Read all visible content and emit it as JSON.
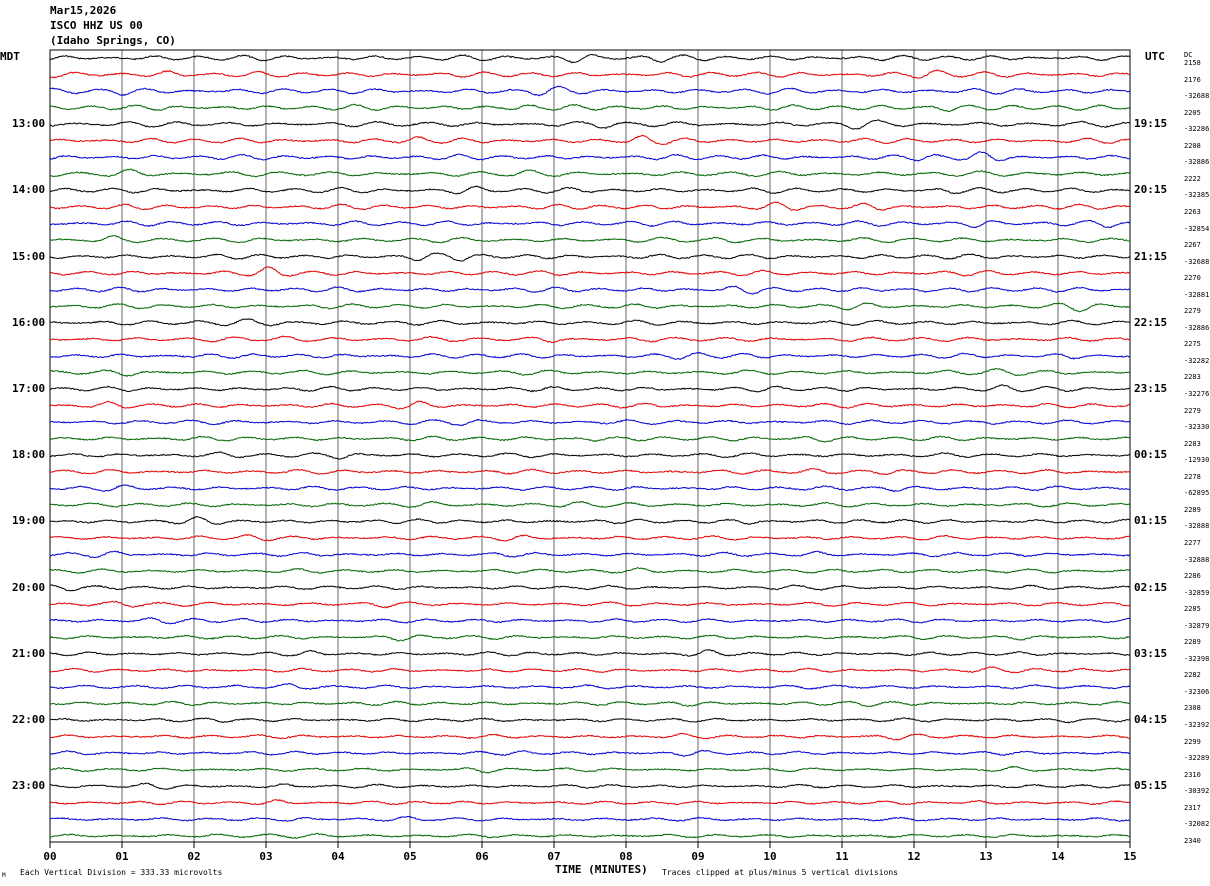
{
  "header": {
    "date": "Mar15,2026",
    "station": "ISCO HHZ US 00",
    "location": "(Idaho Springs, CO)"
  },
  "axis": {
    "left_label": "MDT",
    "right_label": "UTC",
    "dc_label": "DC"
  },
  "chart_data": {
    "type": "line",
    "title": "",
    "xlabel": "TIME (MINUTES)",
    "ylabel": "",
    "xlim": [
      0,
      15
    ],
    "x_ticks": [
      "00",
      "01",
      "02",
      "03",
      "04",
      "05",
      "06",
      "07",
      "08",
      "09",
      "10",
      "11",
      "12",
      "13",
      "14",
      "15"
    ],
    "rows_per_hour": 4,
    "row_minutes": 15,
    "trace_colors": [
      "#000000",
      "#e00000",
      "#0000d0",
      "#006400"
    ],
    "left_hour_labels": [
      "13:00",
      "14:00",
      "15:00",
      "16:00",
      "17:00",
      "18:00",
      "19:00",
      "20:00",
      "21:00",
      "22:00",
      "23:00"
    ],
    "right_hour_labels": [
      "19:15",
      "20:15",
      "21:15",
      "22:15",
      "23:15",
      "00:15",
      "01:15",
      "02:15",
      "03:15",
      "04:15",
      "05:15"
    ],
    "dc_offsets": [
      "2158",
      "2176",
      "-32688",
      "2205",
      "-32286",
      "2208",
      "-32886",
      "2222",
      "-32385",
      "2263",
      "-32854",
      "2267",
      "-32688",
      "2270",
      "-32881",
      "2279",
      "-32886",
      "2275",
      "-32282",
      "2283",
      "-32276",
      "2279",
      "-32330",
      "2283",
      "-12930",
      "2278",
      "-62895",
      "2289",
      "-32888",
      "2277",
      "-32888",
      "2286",
      "-32859",
      "2285",
      "-32879",
      "2289",
      "-32398",
      "2282",
      "-32306",
      "2308",
      "-32392",
      "2299",
      "-32289",
      "2310",
      "-30392",
      "2317",
      "-32082",
      "2340"
    ],
    "amplitude_units": "microvolts",
    "clip_divisions": 5
  },
  "footer": {
    "scale_note": "Each Vertical Division =  333.33 microvolts",
    "clip_note": "Traces clipped at plus/minus 5 vertical divisions",
    "corner_mark": "M"
  }
}
